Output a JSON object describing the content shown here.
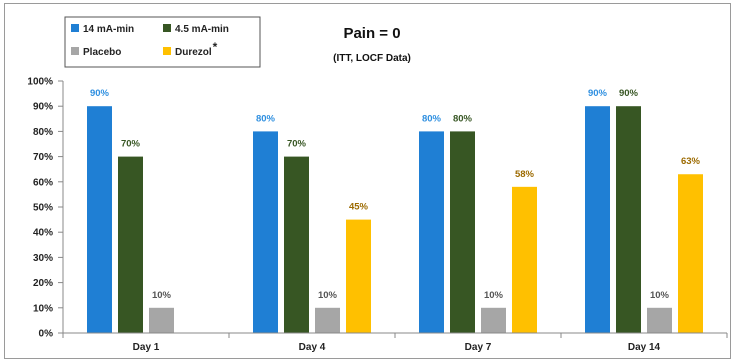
{
  "chart_data": {
    "type": "bar",
    "title": "Pain = 0",
    "subtitle": "(ITT, LOCF Data)",
    "categories": [
      "Day 1",
      "Day 4",
      "Day 7",
      "Day 14"
    ],
    "series": [
      {
        "name": "14 mA-min",
        "color": "#1f7fd4",
        "label_color": "#2e8fe0",
        "values": [
          90,
          80,
          80,
          90
        ],
        "labels": [
          "90%",
          "80%",
          "80%",
          "90%"
        ]
      },
      {
        "name": "4.5 mA-min",
        "color": "#375623",
        "label_color": "#375623",
        "values": [
          70,
          70,
          80,
          90
        ],
        "labels": [
          "70%",
          "70%",
          "80%",
          "90%"
        ]
      },
      {
        "name": "Placebo",
        "color": "#a6a6a6",
        "label_color": "#555555",
        "values": [
          10,
          10,
          10,
          10
        ],
        "labels": [
          "10%",
          "10%",
          "10%",
          "10%"
        ]
      },
      {
        "name": "Durezol",
        "name_suffix": "*",
        "color": "#ffc000",
        "label_color": "#9c6a00",
        "values": [
          null,
          45,
          58,
          63
        ],
        "labels": [
          "",
          "45%",
          "58%",
          "63%"
        ]
      }
    ],
    "y_ticks": [
      "0%",
      "10%",
      "20%",
      "30%",
      "40%",
      "50%",
      "60%",
      "70%",
      "80%",
      "90%",
      "100%"
    ],
    "ylim": [
      0,
      100
    ],
    "grid": false,
    "legend_position": "top-left"
  }
}
